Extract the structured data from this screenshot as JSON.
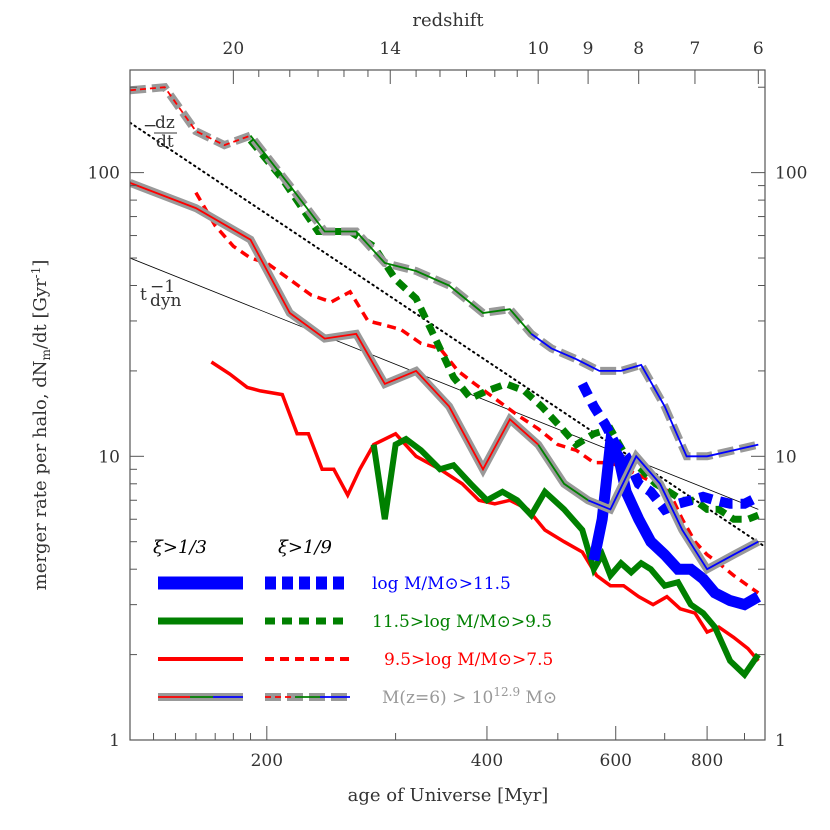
{
  "chart_data": {
    "type": "line",
    "xlabel": "age of Universe [Myr]",
    "ylabel": "merger rate per halo, dN",
    "ylabel_sub": "m",
    "ylabel_tail": "/dt [Gyr",
    "ylabel_sup": "-1",
    "ylabel_end": "]",
    "top_axis_label": "redshift",
    "x_scale": "log",
    "y_scale": "log",
    "xlim": [
      130,
      960
    ],
    "ylim": [
      1,
      230
    ],
    "x_ticks": [
      {
        "v": 200,
        "label": "200"
      },
      {
        "v": 400,
        "label": "400"
      },
      {
        "v": 600,
        "label": "600"
      },
      {
        "v": 800,
        "label": "800"
      }
    ],
    "y_ticks": [
      {
        "v": 1,
        "label": "1"
      },
      {
        "v": 10,
        "label": "10"
      },
      {
        "v": 100,
        "label": "100"
      }
    ],
    "top_ticks": [
      {
        "label": "20",
        "age": 180
      },
      {
        "label": "14",
        "age": 295
      },
      {
        "label": "10",
        "age": 470
      },
      {
        "label": "9",
        "age": 550
      },
      {
        "label": "8",
        "age": 645
      },
      {
        "label": "7",
        "age": 770
      },
      {
        "label": "6",
        "age": 940
      }
    ],
    "annotations": {
      "dzdt_minus": "−",
      "dzdt_num": "dz",
      "dzdt_den": "dt",
      "tdyn_base": "t",
      "tdyn_sup": "−1",
      "tdyn_sub": "dyn"
    },
    "reference_lines": [
      {
        "name": "-dz/dt",
        "style": "dotted",
        "x": [
          130,
          960
        ],
        "y": [
          150,
          4.8
        ]
      },
      {
        "name": "t_dyn^-1",
        "style": "thin",
        "x": [
          130,
          940
        ],
        "y": [
          50,
          6.5
        ]
      }
    ],
    "series": [
      {
        "ratio": "1/3",
        "color": "#ff0000",
        "width": 3.5,
        "dash": "",
        "x": [
          168,
          178,
          188,
          196,
          210,
          220,
          228,
          238,
          247,
          258,
          268,
          280,
          300,
          320,
          345,
          370,
          390,
          410,
          430,
          455,
          480,
          510,
          540,
          565,
          590,
          615,
          645,
          675,
          705,
          735,
          770,
          800,
          830,
          870,
          910,
          940
        ],
        "y": [
          21.5,
          19.5,
          17.5,
          17,
          16.5,
          12,
          12,
          9,
          9,
          7.3,
          9,
          11,
          12,
          10,
          9,
          8,
          7,
          6.8,
          7,
          6.5,
          5.5,
          5,
          4.6,
          3.8,
          3.5,
          3.5,
          3.2,
          3,
          3.2,
          2.9,
          2.8,
          2.4,
          2.5,
          2.3,
          2.1,
          1.9
        ]
      },
      {
        "ratio": "1/9",
        "color": "#ff0000",
        "width": 3.5,
        "dash": "9,6",
        "x": [
          160,
          170,
          180,
          190,
          200,
          215,
          230,
          245,
          260,
          275,
          290,
          305,
          325,
          345,
          365,
          385,
          410,
          440,
          470,
          500,
          530,
          560,
          590,
          620,
          650,
          680,
          710,
          740,
          770,
          800,
          830,
          870,
          910,
          940
        ],
        "y": [
          85,
          65,
          55,
          50,
          48,
          42,
          37,
          35,
          38,
          30,
          29,
          28,
          25,
          24,
          20,
          18,
          16,
          14,
          12.5,
          11,
          10.5,
          9.5,
          9.5,
          9,
          8.5,
          8,
          7.5,
          6,
          5,
          4.5,
          4.2,
          3.8,
          3.5,
          3.3
        ]
      },
      {
        "ratio": "1/3",
        "color": "#008000",
        "width": 6,
        "dash": "",
        "x": [
          280,
          290,
          300,
          310,
          325,
          345,
          360,
          380,
          400,
          420,
          440,
          460,
          480,
          510,
          540,
          560,
          575,
          590,
          610,
          630,
          650,
          670,
          700,
          730,
          760,
          790,
          820,
          860,
          900,
          940
        ],
        "y": [
          11,
          6,
          11,
          11.5,
          10.5,
          9,
          9.3,
          8,
          7,
          7.5,
          7,
          6.2,
          7.5,
          6.5,
          5.5,
          4,
          4.5,
          3.8,
          4.2,
          3.9,
          4.2,
          4,
          3.5,
          3.6,
          3,
          2.8,
          2.5,
          1.9,
          1.7,
          2
        ]
      },
      {
        "ratio": "1/9",
        "color": "#008000",
        "width": 7,
        "dash": "11,7",
        "x": [
          190,
          210,
          235,
          260,
          280,
          300,
          320,
          340,
          360,
          380,
          400,
          425,
          450,
          475,
          500,
          530,
          560,
          590,
          620,
          650,
          680,
          710,
          740,
          770,
          800,
          830,
          870,
          910,
          940
        ],
        "y": [
          130,
          95,
          62,
          62,
          55,
          42,
          36,
          26,
          19,
          16,
          17,
          18,
          17,
          15,
          13,
          11,
          12,
          12.5,
          10,
          9,
          8,
          7.5,
          7,
          7,
          6.5,
          6.5,
          6,
          6,
          6.2
        ]
      },
      {
        "ratio": "1/3",
        "color": "#0000ff",
        "width": 11,
        "dash": "",
        "x": [
          560,
          575,
          590,
          605,
          620,
          645,
          670,
          700,
          730,
          760,
          790,
          820,
          860,
          900,
          940
        ],
        "y": [
          4.3,
          6,
          11,
          10,
          7.5,
          6,
          5,
          4.5,
          4,
          4,
          3.7,
          3.3,
          3.1,
          3,
          3.2
        ]
      },
      {
        "ratio": "1/9",
        "color": "#0000ff",
        "width": 10,
        "dash": "13,8",
        "x": [
          540,
          560,
          580,
          600,
          620,
          645,
          670,
          700,
          730,
          760,
          790,
          820,
          860,
          900,
          940
        ],
        "y": [
          18,
          15,
          13,
          11,
          10,
          8,
          7.5,
          6.5,
          6.8,
          7,
          7.2,
          7,
          6.8,
          6.8,
          7.2
        ]
      },
      {
        "ratio": "1/3",
        "color": "#999999",
        "width": 8,
        "dash": "",
        "x": [
          130,
          160,
          190,
          215,
          240,
          265,
          290,
          320,
          355,
          395,
          430,
          470,
          510,
          550,
          590,
          640,
          690,
          740,
          800,
          870,
          940
        ],
        "y": [
          92,
          75,
          58,
          32,
          26,
          27,
          18,
          20,
          15,
          9,
          13.5,
          11,
          8,
          7,
          6.5,
          10,
          8,
          5.5,
          4,
          4.5,
          5
        ]
      },
      {
        "ratio": "1/3",
        "color": "#ff0000",
        "width": 1.8,
        "dash": "",
        "x": [
          130,
          160,
          190,
          215,
          240,
          265,
          290,
          320,
          355,
          395,
          430,
          470
        ],
        "y": [
          92,
          75,
          58,
          32,
          26,
          27,
          18,
          20,
          15,
          9,
          13.5,
          11
        ]
      },
      {
        "ratio": "1/3",
        "color": "#008000",
        "width": 1.8,
        "dash": "",
        "x": [
          470,
          510,
          550
        ],
        "y": [
          11,
          8,
          7
        ]
      },
      {
        "ratio": "1/3",
        "color": "#0000ff",
        "width": 1.8,
        "dash": "",
        "x": [
          550,
          590,
          640,
          690,
          740,
          800,
          870,
          940
        ],
        "y": [
          7,
          6.5,
          10,
          8,
          5.5,
          4,
          4.5,
          5
        ]
      },
      {
        "ratio": "1/9",
        "color": "#999999",
        "width": 8,
        "dash": "16,6",
        "x": [
          130,
          145,
          160,
          175,
          190,
          215,
          240,
          265,
          290,
          320,
          355,
          395,
          430,
          460,
          490,
          530,
          570,
          610,
          650,
          700,
          750,
          800,
          870,
          940
        ],
        "y": [
          195,
          200,
          140,
          125,
          135,
          90,
          62,
          62,
          48,
          45,
          40,
          32,
          33,
          27,
          24,
          22,
          20,
          20,
          21,
          15,
          10,
          10,
          10.5,
          11
        ]
      },
      {
        "ratio": "1/9",
        "color": "#ff0000",
        "width": 1.8,
        "dash": "6,4",
        "x": [
          130,
          145,
          160,
          175,
          190
        ],
        "y": [
          195,
          200,
          140,
          125,
          135
        ]
      },
      {
        "ratio": "1/9",
        "color": "#008000",
        "width": 1.8,
        "dash": "",
        "x": [
          190,
          215,
          240,
          265,
          290,
          320,
          355,
          395,
          430,
          460
        ],
        "y": [
          135,
          90,
          62,
          62,
          48,
          45,
          40,
          32,
          33,
          27
        ]
      },
      {
        "ratio": "1/9",
        "color": "#0000ff",
        "width": 1.8,
        "dash": "",
        "x": [
          460,
          490,
          530,
          570,
          610,
          650,
          700,
          750,
          800,
          870,
          940
        ],
        "y": [
          27,
          24,
          22,
          20,
          20,
          21,
          15,
          10,
          10,
          10.5,
          11
        ]
      }
    ],
    "legend": {
      "placement": "bottom-left",
      "header_1_3": "ξ>1/3",
      "header_1_9": "ξ>1/9",
      "rows": [
        {
          "label": "log M/M⊙>11.5",
          "color": "#0000ff"
        },
        {
          "label": "11.5>log M/M⊙>9.5",
          "color": "#008000"
        },
        {
          "label": "9.5>log M/M⊙>7.5",
          "color": "#ff0000"
        },
        {
          "label_pre": "M(z=6) > 10",
          "label_sup": "12.9",
          "label_post": " M⊙",
          "color": "#999999"
        }
      ]
    }
  }
}
